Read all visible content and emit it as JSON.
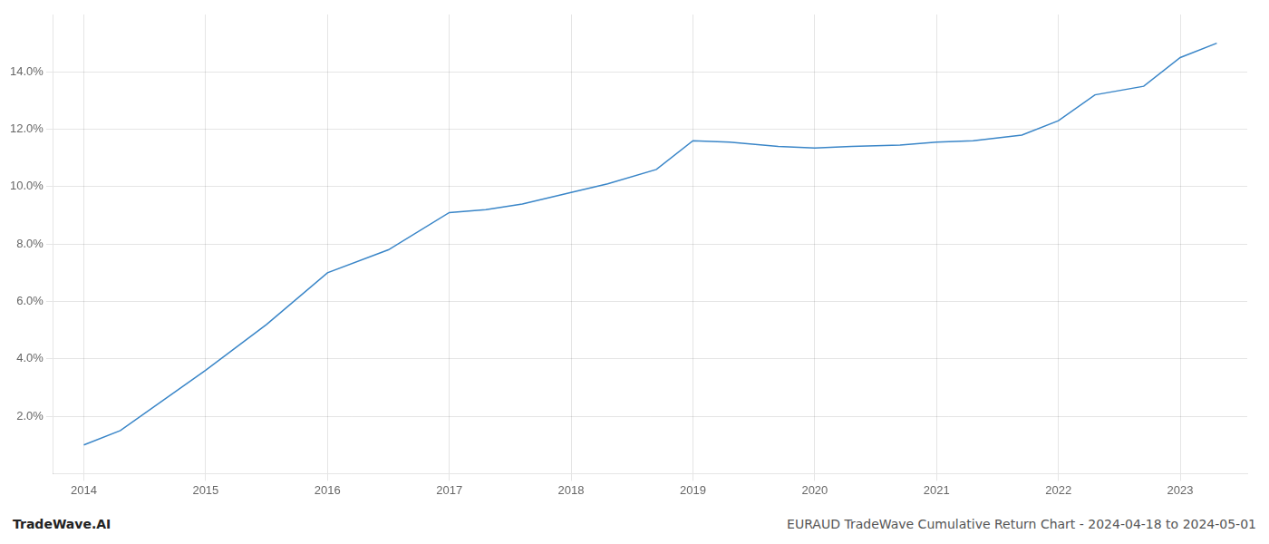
{
  "chart_data": {
    "type": "line",
    "title": "EURAUD TradeWave Cumulative Return Chart - 2024-04-18 to 2024-05-01",
    "annotations": [
      "TradeWave.AI"
    ],
    "x": [
      2014.0,
      2014.3,
      2015.0,
      2015.5,
      2016.0,
      2016.5,
      2017.0,
      2017.3,
      2017.6,
      2018.0,
      2018.3,
      2018.7,
      2019.0,
      2019.3,
      2019.7,
      2020.0,
      2020.3,
      2020.7,
      2021.0,
      2021.3,
      2021.7,
      2022.0,
      2022.3,
      2022.7,
      2023.0,
      2023.3
    ],
    "values": [
      1.0,
      1.5,
      3.6,
      5.2,
      7.0,
      7.8,
      9.1,
      9.2,
      9.4,
      9.8,
      10.1,
      10.6,
      11.6,
      11.55,
      11.4,
      11.35,
      11.4,
      11.45,
      11.55,
      11.6,
      11.8,
      12.3,
      13.2,
      13.5,
      14.5,
      15.0
    ],
    "color": "#3a86c8",
    "xlim": [
      2013.75,
      2023.55
    ],
    "xticks": [
      2014,
      2015,
      2016,
      2017,
      2018,
      2019,
      2020,
      2021,
      2022,
      2023
    ],
    "ylim": [
      0.0,
      16.0
    ],
    "yticks": [
      {
        "value": 2.0,
        "label": "2.0%"
      },
      {
        "value": 4.0,
        "label": "4.0%"
      },
      {
        "value": 6.0,
        "label": "6.0%"
      },
      {
        "value": 8.0,
        "label": "8.0%"
      },
      {
        "value": 10.0,
        "label": "10.0%"
      },
      {
        "value": 12.0,
        "label": "12.0%"
      },
      {
        "value": 14.0,
        "label": "14.0%"
      }
    ],
    "grid": true
  }
}
